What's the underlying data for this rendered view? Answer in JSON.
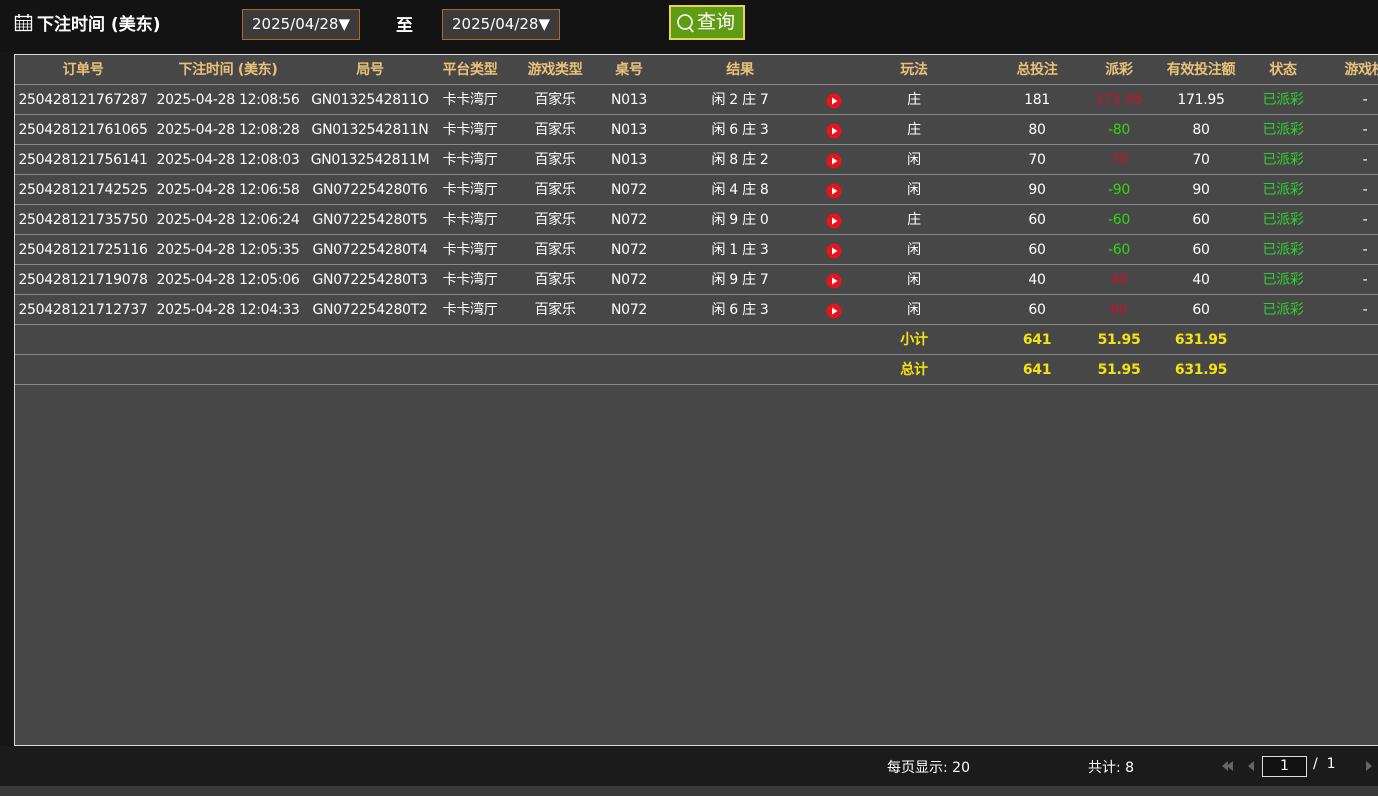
{
  "header": {
    "title": "下注时间 (美东)",
    "date_from": "2025/04/28▼",
    "separator": "至",
    "date_to": "2025/04/28▼",
    "query_button": "查询"
  },
  "table": {
    "columns": [
      "订单号",
      "下注时间 (美东)",
      "局号",
      "平台类型",
      "游戏类型",
      "桌号",
      "结果",
      "玩法",
      "总投注",
      "派彩",
      "有效投注额",
      "状态",
      "游戏桥"
    ],
    "rows": [
      [
        "250428121767287",
        "2025-04-28 12:08:56",
        "GN0132542811O",
        "卡卡湾厅",
        "百家乐",
        "N013",
        "闲 2 庄 7",
        "庄",
        "181",
        "171.95",
        "171.95",
        "已派彩",
        "-"
      ],
      [
        "250428121761065",
        "2025-04-28 12:08:28",
        "GN0132542811N",
        "卡卡湾厅",
        "百家乐",
        "N013",
        "闲 6 庄 3",
        "庄",
        "80",
        "-80",
        "80",
        "已派彩",
        "-"
      ],
      [
        "250428121756141",
        "2025-04-28 12:08:03",
        "GN0132542811M",
        "卡卡湾厅",
        "百家乐",
        "N013",
        "闲 8 庄 2",
        "闲",
        "70",
        "70",
        "70",
        "已派彩",
        "-"
      ],
      [
        "250428121742525",
        "2025-04-28 12:06:58",
        "GN072254280T6",
        "卡卡湾厅",
        "百家乐",
        "N072",
        "闲 4 庄 8",
        "闲",
        "90",
        "-90",
        "90",
        "已派彩",
        "-"
      ],
      [
        "250428121735750",
        "2025-04-28 12:06:24",
        "GN072254280T5",
        "卡卡湾厅",
        "百家乐",
        "N072",
        "闲 9 庄 0",
        "庄",
        "60",
        "-60",
        "60",
        "已派彩",
        "-"
      ],
      [
        "250428121725116",
        "2025-04-28 12:05:35",
        "GN072254280T4",
        "卡卡湾厅",
        "百家乐",
        "N072",
        "闲 1 庄 3",
        "闲",
        "60",
        "-60",
        "60",
        "已派彩",
        "-"
      ],
      [
        "250428121719078",
        "2025-04-28 12:05:06",
        "GN072254280T3",
        "卡卡湾厅",
        "百家乐",
        "N072",
        "闲 9 庄 7",
        "闲",
        "40",
        "40",
        "40",
        "已派彩",
        "-"
      ],
      [
        "250428121712737",
        "2025-04-28 12:04:33",
        "GN072254280T2",
        "卡卡湾厅",
        "百家乐",
        "N072",
        "闲 6 庄 3",
        "闲",
        "60",
        "60",
        "60",
        "已派彩",
        "-"
      ]
    ],
    "subtotal": {
      "label": "小计",
      "total_bet": "641",
      "payout": "51.95",
      "valid_bet": "631.95"
    },
    "total": {
      "label": "总计",
      "total_bet": "641",
      "payout": "51.95",
      "valid_bet": "631.95"
    }
  },
  "footer": {
    "page_size": "每页显示: 20",
    "count": "共计: 8",
    "page": "1",
    "page_total": "/  1"
  }
}
